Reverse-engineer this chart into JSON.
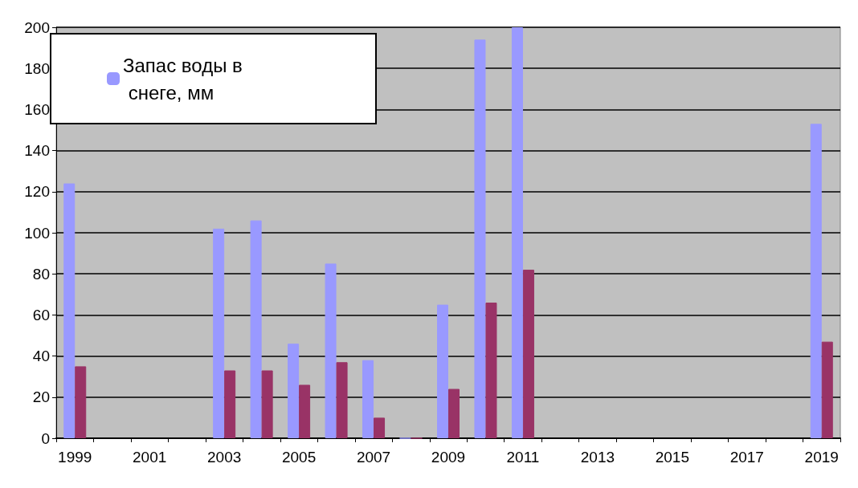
{
  "chart_data": {
    "type": "bar",
    "categories": [
      "1999",
      null,
      "2001",
      null,
      "2003",
      null,
      "2005",
      null,
      "2007",
      null,
      "2009",
      null,
      "2011",
      null,
      "2013",
      null,
      "2015",
      null,
      "2017",
      null,
      "2019"
    ],
    "series": [
      {
        "name": "Запас воды в снеге, мм",
        "color": "#9999ff",
        "values": [
          124,
          null,
          null,
          null,
          102,
          106,
          46,
          85,
          38,
          0,
          65,
          194,
          200,
          null,
          null,
          null,
          null,
          null,
          null,
          null,
          153
        ]
      },
      {
        "color": "#993366",
        "values": [
          35,
          null,
          null,
          null,
          33,
          33,
          26,
          37,
          10,
          0,
          24,
          66,
          82,
          null,
          null,
          null,
          null,
          null,
          null,
          null,
          47
        ]
      }
    ],
    "ylim": [
      0,
      200
    ],
    "yticks": [
      0,
      20,
      40,
      60,
      80,
      100,
      120,
      140,
      160,
      180,
      200
    ],
    "grid": "y",
    "legend": "top left"
  }
}
